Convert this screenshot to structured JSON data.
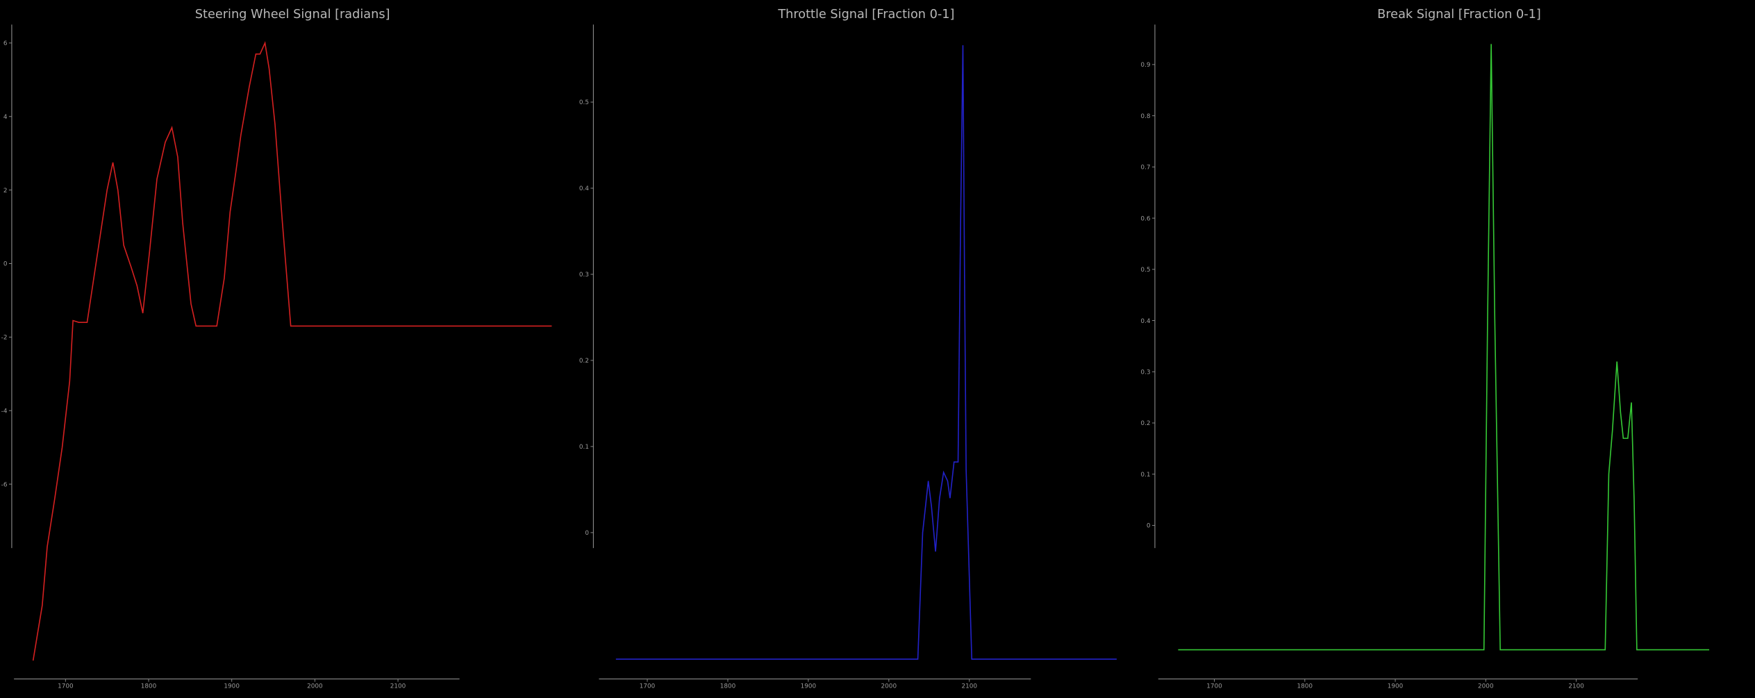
{
  "chart_data": [
    {
      "type": "line",
      "title": "Steering Wheel Signal [radians]",
      "x": [
        1661,
        1672,
        1678,
        1687,
        1696,
        1705,
        1709,
        1716,
        1726,
        1740,
        1750,
        1757,
        1763,
        1770,
        1779,
        1786,
        1793,
        1801,
        1810,
        1820,
        1828,
        1835,
        1841,
        1851,
        1857,
        1882,
        1891,
        1898,
        1905,
        1911,
        1921,
        1929,
        1934,
        1940,
        1945,
        1952,
        1961,
        1971,
        2285
      ],
      "series": [
        {
          "name": "steering",
          "color": "#d42020",
          "values": [
            -10.8,
            -9.3,
            -7.7,
            -6.4,
            -5.0,
            -3.2,
            -1.55,
            -1.6,
            -1.6,
            0.5,
            2.0,
            2.75,
            2.0,
            0.5,
            -0.1,
            -0.6,
            -1.35,
            0.3,
            2.3,
            3.3,
            3.7,
            2.9,
            1.1,
            -1.1,
            -1.7,
            -1.7,
            -0.4,
            1.4,
            2.5,
            3.5,
            4.8,
            5.7,
            5.7,
            6.0,
            5.3,
            3.8,
            1.1,
            -1.7,
            -1.7
          ]
        }
      ],
      "xlim": [
        1638,
        2288
      ],
      "ylim": [
        -11.3,
        6.5
      ],
      "xticks": [
        1700,
        1800,
        1900,
        2000,
        2100
      ],
      "yticks": [
        -6,
        -4,
        -2,
        0,
        2,
        4,
        6
      ]
    },
    {
      "type": "line",
      "title": "Throttle Signal [Fraction 0-1]",
      "x": [
        1661,
        2036,
        2042,
        2049,
        2053,
        2058,
        2063,
        2068,
        2073,
        2076,
        2081,
        2086,
        2089,
        2092,
        2094,
        2096,
        2103,
        2283
      ],
      "series": [
        {
          "name": "throttle",
          "color": "#2222c8",
          "values": [
            -0.147,
            -0.147,
            0.0,
            0.06,
            0.03,
            -0.022,
            0.04,
            0.07,
            0.06,
            0.04,
            0.082,
            0.082,
            0.35,
            0.566,
            0.3,
            0.073,
            -0.147,
            -0.147
          ]
        }
      ],
      "xlim": [
        1640,
        2286
      ],
      "ylim": [
        -0.17,
        0.59
      ],
      "xticks": [
        1700,
        1800,
        1900,
        2000,
        2100
      ],
      "yticks": [
        0,
        0.1,
        0.2,
        0.3,
        0.4,
        0.5
      ]
    },
    {
      "type": "line",
      "title": "Break Signal [Fraction 0-1]",
      "x": [
        1660,
        1998,
        2002,
        2006,
        2010,
        2016,
        2132,
        2136,
        2140,
        2145,
        2149,
        2152,
        2157,
        2161,
        2164,
        2167,
        2247
      ],
      "series": [
        {
          "name": "break",
          "color": "#35c835",
          "values": [
            -0.243,
            -0.243,
            0.4,
            0.94,
            0.4,
            -0.243,
            -0.243,
            0.1,
            0.185,
            0.32,
            0.22,
            0.17,
            0.17,
            0.24,
            0.05,
            -0.243,
            -0.243
          ]
        }
      ],
      "xlim": [
        1638,
        2250
      ],
      "ylim": [
        -0.3,
        0.978
      ],
      "xticks": [
        1700,
        1800,
        1900,
        2000,
        2100
      ],
      "yticks": [
        0,
        0.1,
        0.2,
        0.3,
        0.4,
        0.5,
        0.6,
        0.7,
        0.8,
        0.9
      ]
    }
  ]
}
